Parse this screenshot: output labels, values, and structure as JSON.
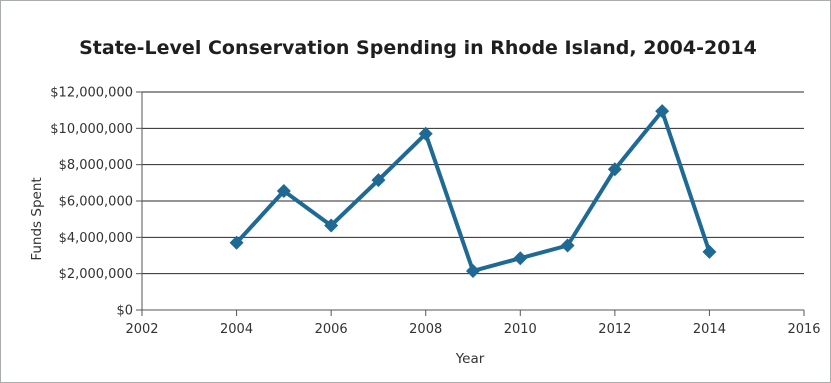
{
  "chart_data": {
    "type": "line",
    "title": "State-Level Conservation Spending in Rhode Island, 2004-2014",
    "xlabel": "Year",
    "ylabel": "Funds Spent",
    "xlim": [
      2002,
      2016
    ],
    "ylim": [
      0,
      12000000
    ],
    "x_ticks": [
      "2002",
      "2004",
      "2006",
      "2008",
      "2010",
      "2012",
      "2014",
      "2016"
    ],
    "y_ticks": [
      "$0",
      "$2,000,000",
      "$4,000,000",
      "$6,000,000",
      "$8,000,000",
      "$10,000,000",
      "$12,000,000"
    ],
    "grid": "horizontal",
    "series": [
      {
        "color": "#1f6a94",
        "marker": "diamond",
        "x": [
          2004,
          2005,
          2006,
          2007,
          2008,
          2009,
          2010,
          2011,
          2012,
          2013,
          2014
        ],
        "y": [
          3700000,
          6550000,
          4650000,
          7150000,
          9700000,
          2150000,
          2850000,
          3550000,
          7750000,
          10950000,
          3200000
        ]
      }
    ]
  }
}
